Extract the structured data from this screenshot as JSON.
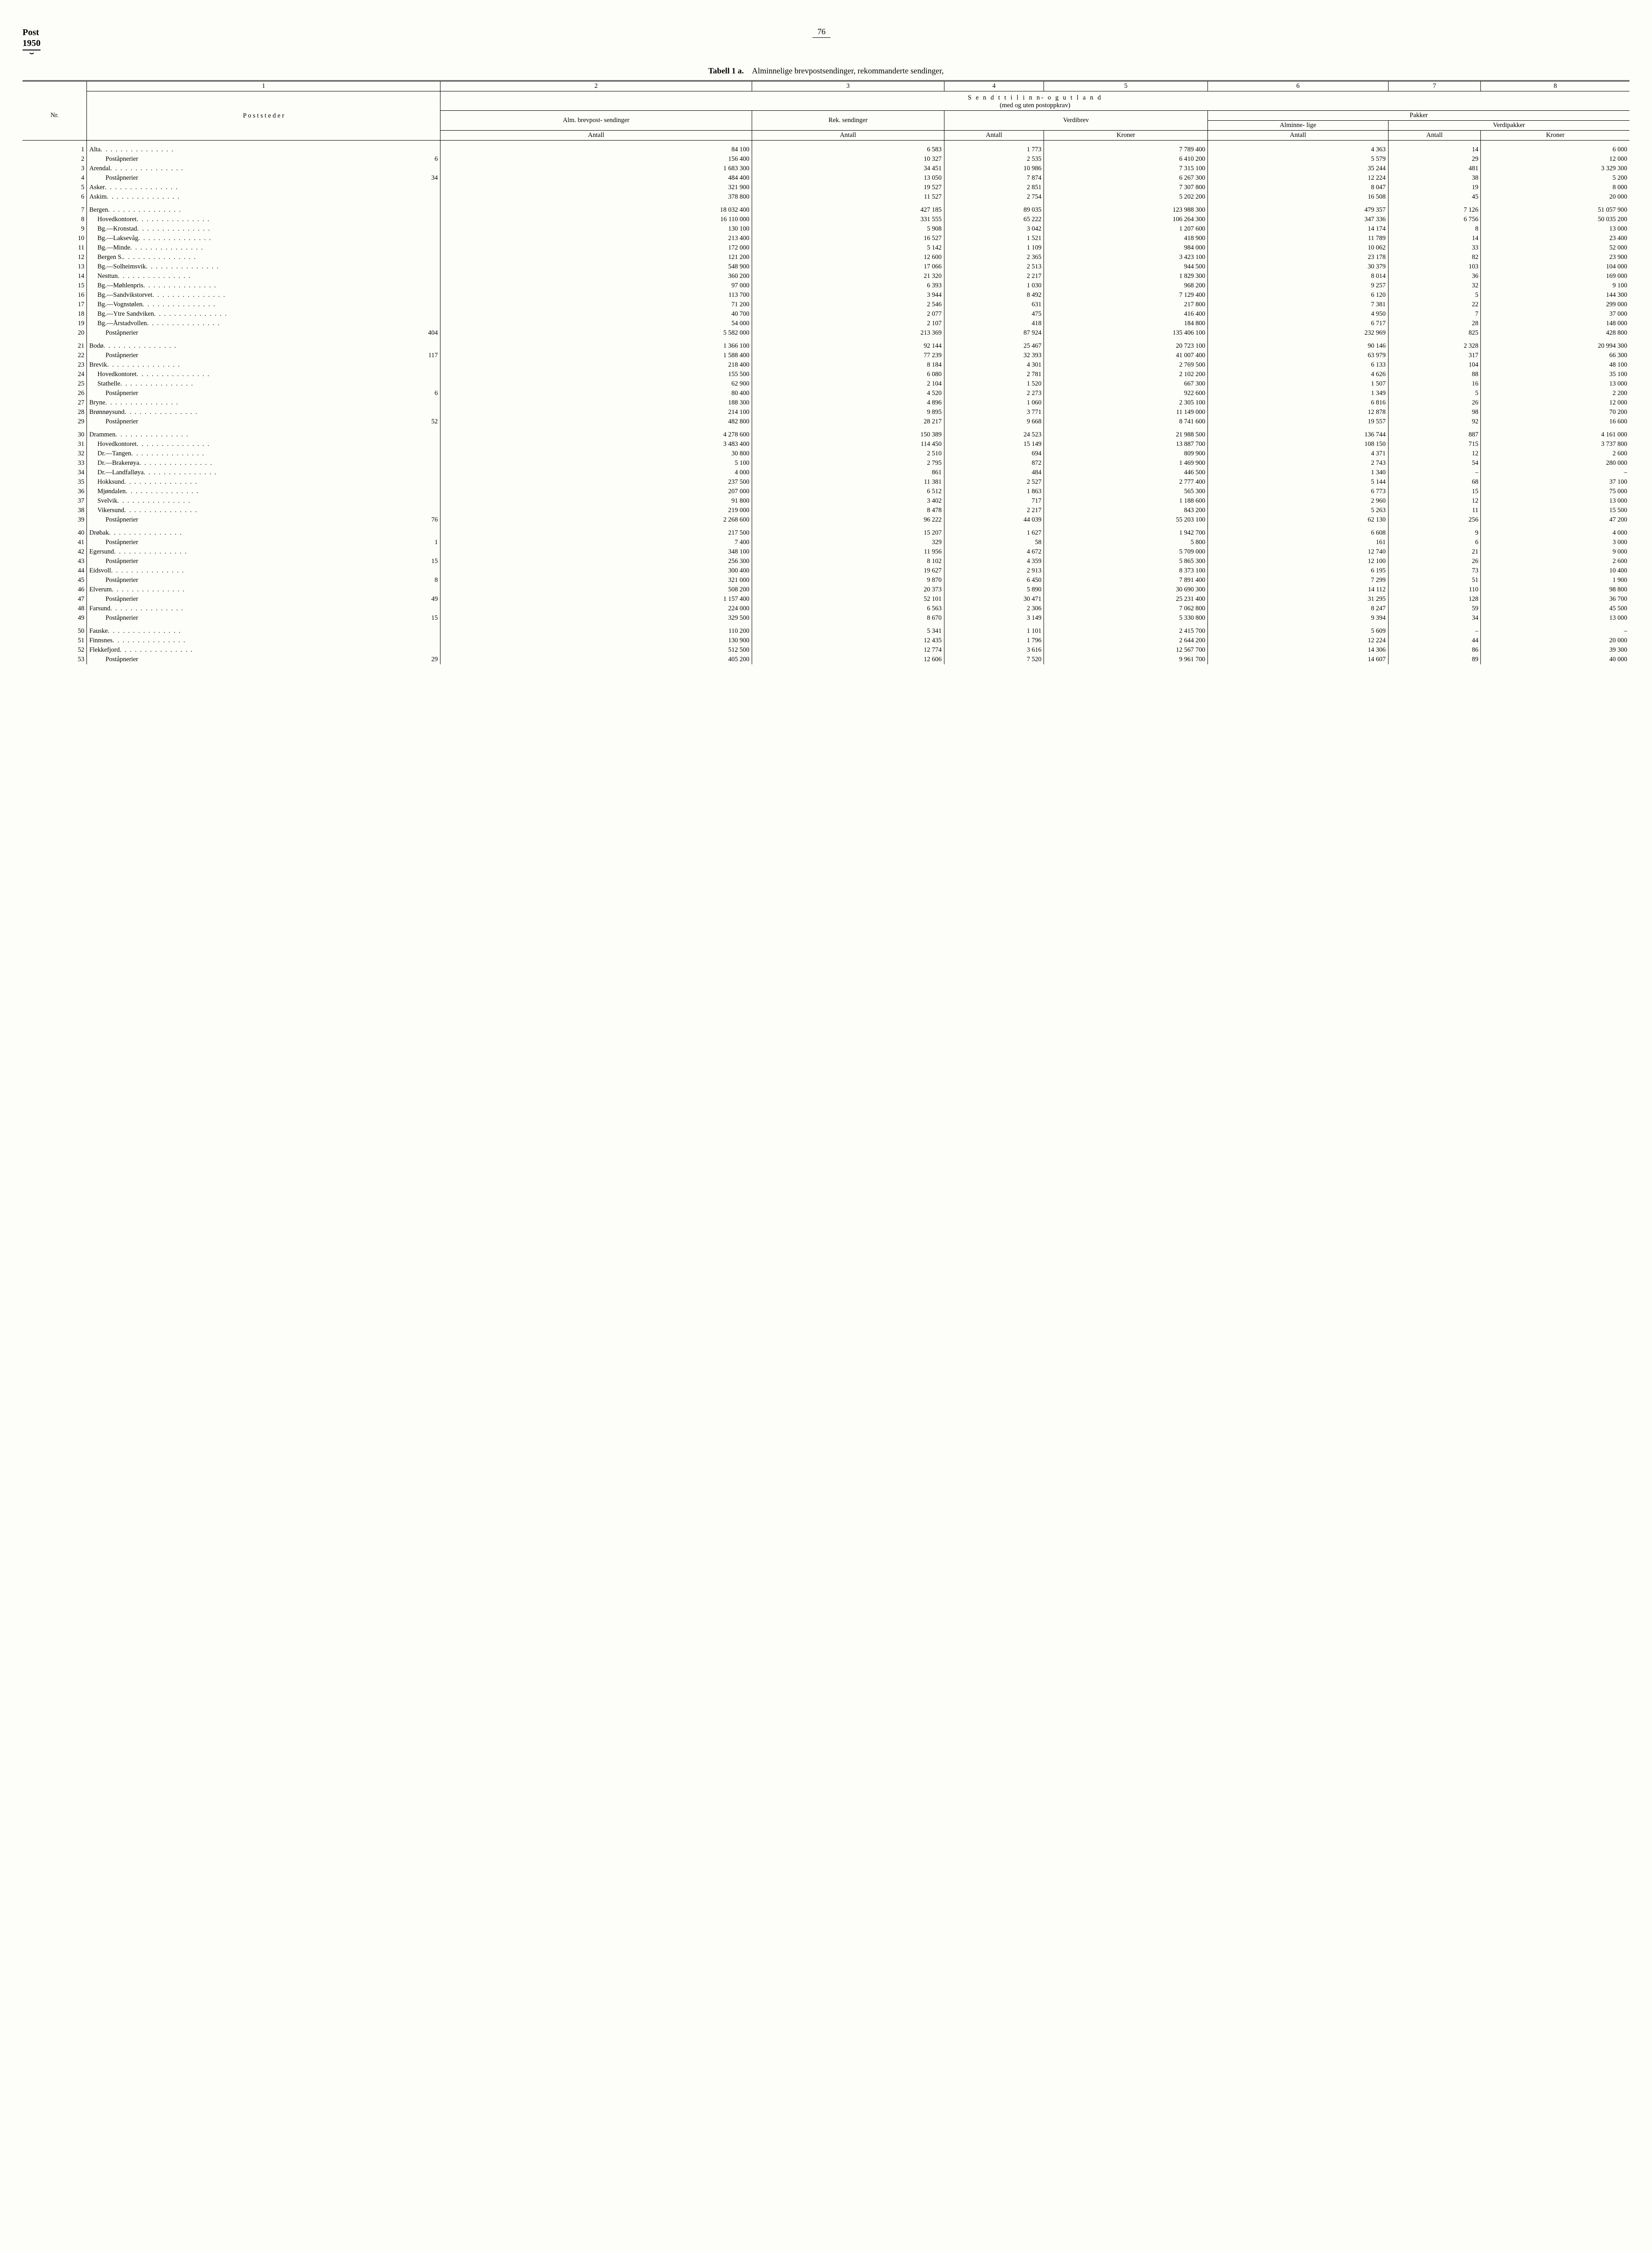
{
  "header": {
    "label1": "Post",
    "label2": "1950",
    "page_number": "76"
  },
  "title": {
    "bold": "Tabell 1 a.",
    "rest": "Alminnelige brevpostsendinger, rekommanderte sendinger,"
  },
  "column_headers": {
    "nums": [
      "1",
      "2",
      "3",
      "4",
      "5",
      "6",
      "7",
      "8"
    ],
    "nr": "Nr.",
    "poststeder": "P o s t s t e d e r",
    "sendt": "S e n d t  t i l  i n n-  o g  u t l a n d",
    "sendt_sub": "(med og uten postoppkrav)",
    "alm": "Alm. brevpost- sendinger",
    "rek": "Rek. sendinger",
    "verdibrev": "Verdibrev",
    "pakker": "Pakker",
    "alminne": "Alminne- lige",
    "verdipakker": "Verdipakker",
    "antall": "Antall",
    "kroner": "Kroner"
  },
  "groups": [
    [
      {
        "nr": "1",
        "place": "Alta",
        "suffix": "",
        "indent": 0,
        "c2": "84 100",
        "c3": "6 583",
        "c4": "1 773",
        "c5": "7 789 400",
        "c6": "4 363",
        "c7": "14",
        "c8": "6 000"
      },
      {
        "nr": "2",
        "place": "Poståpnerier",
        "suffix": "6",
        "indent": 2,
        "c2": "156 400",
        "c3": "10 327",
        "c4": "2 535",
        "c5": "6 410 200",
        "c6": "5 579",
        "c7": "29",
        "c8": "12 000"
      },
      {
        "nr": "3",
        "place": "Arendal",
        "suffix": "",
        "indent": 0,
        "c2": "1 683 300",
        "c3": "34 451",
        "c4": "10 986",
        "c5": "7 315 100",
        "c6": "35 244",
        "c7": "481",
        "c8": "3 329 300"
      },
      {
        "nr": "4",
        "place": "Poståpnerier",
        "suffix": "34",
        "indent": 2,
        "c2": "484 400",
        "c3": "13 050",
        "c4": "7 874",
        "c5": "6 267 300",
        "c6": "12 224",
        "c7": "38",
        "c8": "5 200"
      },
      {
        "nr": "5",
        "place": "Asker",
        "suffix": "",
        "indent": 0,
        "c2": "321 900",
        "c3": "19 527",
        "c4": "2 851",
        "c5": "7 307 800",
        "c6": "8 047",
        "c7": "19",
        "c8": "8 000"
      },
      {
        "nr": "6",
        "place": "Askim",
        "suffix": "",
        "indent": 0,
        "c2": "378 800",
        "c3": "11 527",
        "c4": "2 754",
        "c5": "5 202 200",
        "c6": "16 508",
        "c7": "45",
        "c8": "20 000"
      }
    ],
    [
      {
        "nr": "7",
        "place": "Bergen",
        "suffix": "",
        "indent": 0,
        "c2": "18 032 400",
        "c3": "427 185",
        "c4": "89 035",
        "c5": "123 988 300",
        "c6": "479 357",
        "c7": "7 126",
        "c8": "51 057 900"
      },
      {
        "nr": "8",
        "place": "Hovedkontoret",
        "suffix": "",
        "indent": 1,
        "c2": "16 110 000",
        "c3": "331 555",
        "c4": "65 222",
        "c5": "106 264 300",
        "c6": "347 336",
        "c7": "6 756",
        "c8": "50 035 200"
      },
      {
        "nr": "9",
        "place": "Bg.—Kronstad",
        "suffix": "",
        "indent": 1,
        "c2": "130 100",
        "c3": "5 908",
        "c4": "3 042",
        "c5": "1 207 600",
        "c6": "14 174",
        "c7": "8",
        "c8": "13 000"
      },
      {
        "nr": "10",
        "place": "Bg.—Laksevåg",
        "suffix": "",
        "indent": 1,
        "c2": "213 400",
        "c3": "16 527",
        "c4": "1 521",
        "c5": "418 900",
        "c6": "11 789",
        "c7": "14",
        "c8": "23 400"
      },
      {
        "nr": "11",
        "place": "Bg.—Minde",
        "suffix": "",
        "indent": 1,
        "c2": "172 000",
        "c3": "5 142",
        "c4": "1 109",
        "c5": "984 000",
        "c6": "10 062",
        "c7": "33",
        "c8": "52 000"
      },
      {
        "nr": "12",
        "place": "Bergen S.",
        "suffix": "",
        "indent": 1,
        "c2": "121 200",
        "c3": "12 600",
        "c4": "2 365",
        "c5": "3 423 100",
        "c6": "23 178",
        "c7": "82",
        "c8": "23 900"
      },
      {
        "nr": "13",
        "place": "Bg.—Solheimsvik",
        "suffix": "",
        "indent": 1,
        "c2": "548 900",
        "c3": "17 066",
        "c4": "2 513",
        "c5": "944 500",
        "c6": "30 379",
        "c7": "103",
        "c8": "104 000"
      },
      {
        "nr": "14",
        "place": "Nesttun",
        "suffix": "",
        "indent": 1,
        "c2": "360 200",
        "c3": "21 320",
        "c4": "2 217",
        "c5": "1 829 300",
        "c6": "8 014",
        "c7": "36",
        "c8": "169 000"
      },
      {
        "nr": "15",
        "place": "Bg.—Møhlenpris",
        "suffix": "",
        "indent": 1,
        "c2": "97 000",
        "c3": "6 393",
        "c4": "1 030",
        "c5": "968 200",
        "c6": "9 257",
        "c7": "32",
        "c8": "9 100"
      },
      {
        "nr": "16",
        "place": "Bg.—Sandvikstorvet",
        "suffix": "",
        "indent": 1,
        "c2": "113 700",
        "c3": "3 944",
        "c4": "8 492",
        "c5": "7 129 400",
        "c6": "6 120",
        "c7": "5",
        "c8": "144 300"
      },
      {
        "nr": "17",
        "place": "Bg.—Vognstølen",
        "suffix": "",
        "indent": 1,
        "c2": "71 200",
        "c3": "2 546",
        "c4": "631",
        "c5": "217 800",
        "c6": "7 381",
        "c7": "22",
        "c8": "299 000"
      },
      {
        "nr": "18",
        "place": "Bg.—Ytre Sandviken",
        "suffix": "",
        "indent": 1,
        "c2": "40 700",
        "c3": "2 077",
        "c4": "475",
        "c5": "416 400",
        "c6": "4 950",
        "c7": "7",
        "c8": "37 000"
      },
      {
        "nr": "19",
        "place": "Bg.—Årstadvollen",
        "suffix": "",
        "indent": 1,
        "c2": "54 000",
        "c3": "2 107",
        "c4": "418",
        "c5": "184 800",
        "c6": "6 717",
        "c7": "28",
        "c8": "148 000"
      },
      {
        "nr": "20",
        "place": "Poståpnerier",
        "suffix": "404",
        "indent": 2,
        "c2": "5 582 000",
        "c3": "213 369",
        "c4": "87 924",
        "c5": "135 406 100",
        "c6": "232 969",
        "c7": "825",
        "c8": "428 800"
      }
    ],
    [
      {
        "nr": "21",
        "place": "Bodø",
        "suffix": "",
        "indent": 0,
        "c2": "1 366 100",
        "c3": "92 144",
        "c4": "25 467",
        "c5": "20 723 100",
        "c6": "90 146",
        "c7": "2 328",
        "c8": "20 994 300"
      },
      {
        "nr": "22",
        "place": "Poståpnerier",
        "suffix": "117",
        "indent": 2,
        "c2": "1 588 400",
        "c3": "77 239",
        "c4": "32 393",
        "c5": "41 007 400",
        "c6": "63 979",
        "c7": "317",
        "c8": "66 300"
      },
      {
        "nr": "23",
        "place": "Brevik",
        "suffix": "",
        "indent": 0,
        "c2": "218 400",
        "c3": "8 184",
        "c4": "4 301",
        "c5": "2 769 500",
        "c6": "6 133",
        "c7": "104",
        "c8": "48 100"
      },
      {
        "nr": "24",
        "place": "Hovedkontoret",
        "suffix": "",
        "indent": 1,
        "c2": "155 500",
        "c3": "6 080",
        "c4": "2 781",
        "c5": "2 102 200",
        "c6": "4 626",
        "c7": "88",
        "c8": "35 100"
      },
      {
        "nr": "25",
        "place": "Stathelle",
        "suffix": "",
        "indent": 1,
        "c2": "62 900",
        "c3": "2 104",
        "c4": "1 520",
        "c5": "667 300",
        "c6": "1 507",
        "c7": "16",
        "c8": "13 000"
      },
      {
        "nr": "26",
        "place": "Poståpnerier",
        "suffix": "6",
        "indent": 2,
        "c2": "80 400",
        "c3": "4 520",
        "c4": "2 273",
        "c5": "922 600",
        "c6": "1 349",
        "c7": "5",
        "c8": "2 200"
      },
      {
        "nr": "27",
        "place": "Bryne",
        "suffix": "",
        "indent": 0,
        "c2": "188 300",
        "c3": "4 896",
        "c4": "1 060",
        "c5": "2 305 100",
        "c6": "6 816",
        "c7": "26",
        "c8": "12 000"
      },
      {
        "nr": "28",
        "place": "Brønnøysund",
        "suffix": "",
        "indent": 0,
        "c2": "214 100",
        "c3": "9 895",
        "c4": "3 771",
        "c5": "11 149 000",
        "c6": "12 878",
        "c7": "98",
        "c8": "70 200"
      },
      {
        "nr": "29",
        "place": "Poståpnerier",
        "suffix": "52",
        "indent": 2,
        "c2": "482 800",
        "c3": "28 217",
        "c4": "9 668",
        "c5": "8 741 600",
        "c6": "19 557",
        "c7": "92",
        "c8": "16 600"
      }
    ],
    [
      {
        "nr": "30",
        "place": "Drammen",
        "suffix": "",
        "indent": 0,
        "c2": "4 278 600",
        "c3": "150 389",
        "c4": "24 523",
        "c5": "21 988 500",
        "c6": "136 744",
        "c7": "887",
        "c8": "4 161 000"
      },
      {
        "nr": "31",
        "place": "Hovedkontoret",
        "suffix": "",
        "indent": 1,
        "c2": "3 483 400",
        "c3": "114 450",
        "c4": "15 149",
        "c5": "13 887 700",
        "c6": "108 150",
        "c7": "715",
        "c8": "3 737 800"
      },
      {
        "nr": "32",
        "place": "Dr.—Tangen",
        "suffix": "",
        "indent": 1,
        "c2": "30 800",
        "c3": "2 510",
        "c4": "694",
        "c5": "809 900",
        "c6": "4 371",
        "c7": "12",
        "c8": "2 600"
      },
      {
        "nr": "33",
        "place": "Dr.—Brakerøya",
        "suffix": "",
        "indent": 1,
        "c2": "5 100",
        "c3": "2 795",
        "c4": "872",
        "c5": "1 469 900",
        "c6": "2 743",
        "c7": "54",
        "c8": "280 000"
      },
      {
        "nr": "34",
        "place": "Dr.—Landfalløya",
        "suffix": "",
        "indent": 1,
        "c2": "4 000",
        "c3": "861",
        "c4": "484",
        "c5": "446 500",
        "c6": "1 340",
        "c7": "–",
        "c8": "–"
      },
      {
        "nr": "35",
        "place": "Hokksund",
        "suffix": "",
        "indent": 1,
        "c2": "237 500",
        "c3": "11 381",
        "c4": "2 527",
        "c5": "2 777 400",
        "c6": "5 144",
        "c7": "68",
        "c8": "37 100"
      },
      {
        "nr": "36",
        "place": "Mjøndalen",
        "suffix": "",
        "indent": 1,
        "c2": "207 000",
        "c3": "6 512",
        "c4": "1 863",
        "c5": "565 300",
        "c6": "6 773",
        "c7": "15",
        "c8": "75 000"
      },
      {
        "nr": "37",
        "place": "Svelvik",
        "suffix": "",
        "indent": 1,
        "c2": "91 800",
        "c3": "3 402",
        "c4": "717",
        "c5": "1 188 600",
        "c6": "2 960",
        "c7": "12",
        "c8": "13 000"
      },
      {
        "nr": "38",
        "place": "Vikersund",
        "suffix": "",
        "indent": 1,
        "c2": "219 000",
        "c3": "8 478",
        "c4": "2 217",
        "c5": "843 200",
        "c6": "5 263",
        "c7": "11",
        "c8": "15 500"
      },
      {
        "nr": "39",
        "place": "Poståpnerier",
        "suffix": "76",
        "indent": 2,
        "c2": "2 268 600",
        "c3": "96 222",
        "c4": "44 039",
        "c5": "55 203 100",
        "c6": "62 130",
        "c7": "256",
        "c8": "47 200"
      }
    ],
    [
      {
        "nr": "40",
        "place": "Drøbak",
        "suffix": "",
        "indent": 0,
        "c2": "217 500",
        "c3": "15 207",
        "c4": "1 627",
        "c5": "1 942 700",
        "c6": "6 608",
        "c7": "9",
        "c8": "4 000"
      },
      {
        "nr": "41",
        "place": "Poståpnerier",
        "suffix": "1",
        "indent": 2,
        "c2": "7 400",
        "c3": "329",
        "c4": "58",
        "c5": "5 800",
        "c6": "161",
        "c7": "6",
        "c8": "3 000"
      },
      {
        "nr": "42",
        "place": "Egersund",
        "suffix": "",
        "indent": 0,
        "c2": "348 100",
        "c3": "11 956",
        "c4": "4 672",
        "c5": "5 709 000",
        "c6": "12 740",
        "c7": "21",
        "c8": "9 000"
      },
      {
        "nr": "43",
        "place": "Poståpnerier",
        "suffix": "15",
        "indent": 2,
        "c2": "256 300",
        "c3": "8 102",
        "c4": "4 359",
        "c5": "5 865 300",
        "c6": "12 100",
        "c7": "26",
        "c8": "2 600"
      },
      {
        "nr": "44",
        "place": "Eidsvoll",
        "suffix": "",
        "indent": 0,
        "c2": "300 400",
        "c3": "19 627",
        "c4": "2 913",
        "c5": "8 373 100",
        "c6": "6 195",
        "c7": "73",
        "c8": "10 400"
      },
      {
        "nr": "45",
        "place": "Poståpnerier",
        "suffix": "8",
        "indent": 2,
        "c2": "321 000",
        "c3": "9 870",
        "c4": "6 450",
        "c5": "7 891 400",
        "c6": "7 299",
        "c7": "51",
        "c8": "1 900"
      },
      {
        "nr": "46",
        "place": "Elverum",
        "suffix": "",
        "indent": 0,
        "c2": "508 200",
        "c3": "20 373",
        "c4": "5 890",
        "c5": "30 690 300",
        "c6": "14 112",
        "c7": "110",
        "c8": "98 800"
      },
      {
        "nr": "47",
        "place": "Poståpnerier",
        "suffix": "49",
        "indent": 2,
        "c2": "1 157 400",
        "c3": "52 101",
        "c4": "30 471",
        "c5": "25 231 400",
        "c6": "31 295",
        "c7": "128",
        "c8": "36 700"
      },
      {
        "nr": "48",
        "place": "Farsund",
        "suffix": "",
        "indent": 0,
        "c2": "224 000",
        "c3": "6 563",
        "c4": "2 306",
        "c5": "7 062 800",
        "c6": "8 247",
        "c7": "59",
        "c8": "45 500"
      },
      {
        "nr": "49",
        "place": "Poståpnerier",
        "suffix": "15",
        "indent": 2,
        "c2": "329 500",
        "c3": "8 670",
        "c4": "3 149",
        "c5": "5 330 800",
        "c6": "9 394",
        "c7": "34",
        "c8": "13 000"
      }
    ],
    [
      {
        "nr": "50",
        "place": "Fauske",
        "suffix": "",
        "indent": 0,
        "c2": "110 200",
        "c3": "5 341",
        "c4": "1 101",
        "c5": "2 415 700",
        "c6": "5 609",
        "c7": "–",
        "c8": "–"
      },
      {
        "nr": "51",
        "place": "Finnsnes",
        "suffix": "",
        "indent": 0,
        "c2": "130 900",
        "c3": "12 435",
        "c4": "1 796",
        "c5": "2 644 200",
        "c6": "12 224",
        "c7": "44",
        "c8": "20 000"
      },
      {
        "nr": "52",
        "place": "Flekkefjord",
        "suffix": "",
        "indent": 0,
        "c2": "512 500",
        "c3": "12 774",
        "c4": "3 616",
        "c5": "12 567 700",
        "c6": "14 306",
        "c7": "86",
        "c8": "39 300"
      },
      {
        "nr": "53",
        "place": "Poståpnerier",
        "suffix": "29",
        "indent": 2,
        "c2": "405 200",
        "c3": "12 606",
        "c4": "7 520",
        "c5": "9 961 700",
        "c6": "14 607",
        "c7": "89",
        "c8": "40 000"
      }
    ]
  ]
}
